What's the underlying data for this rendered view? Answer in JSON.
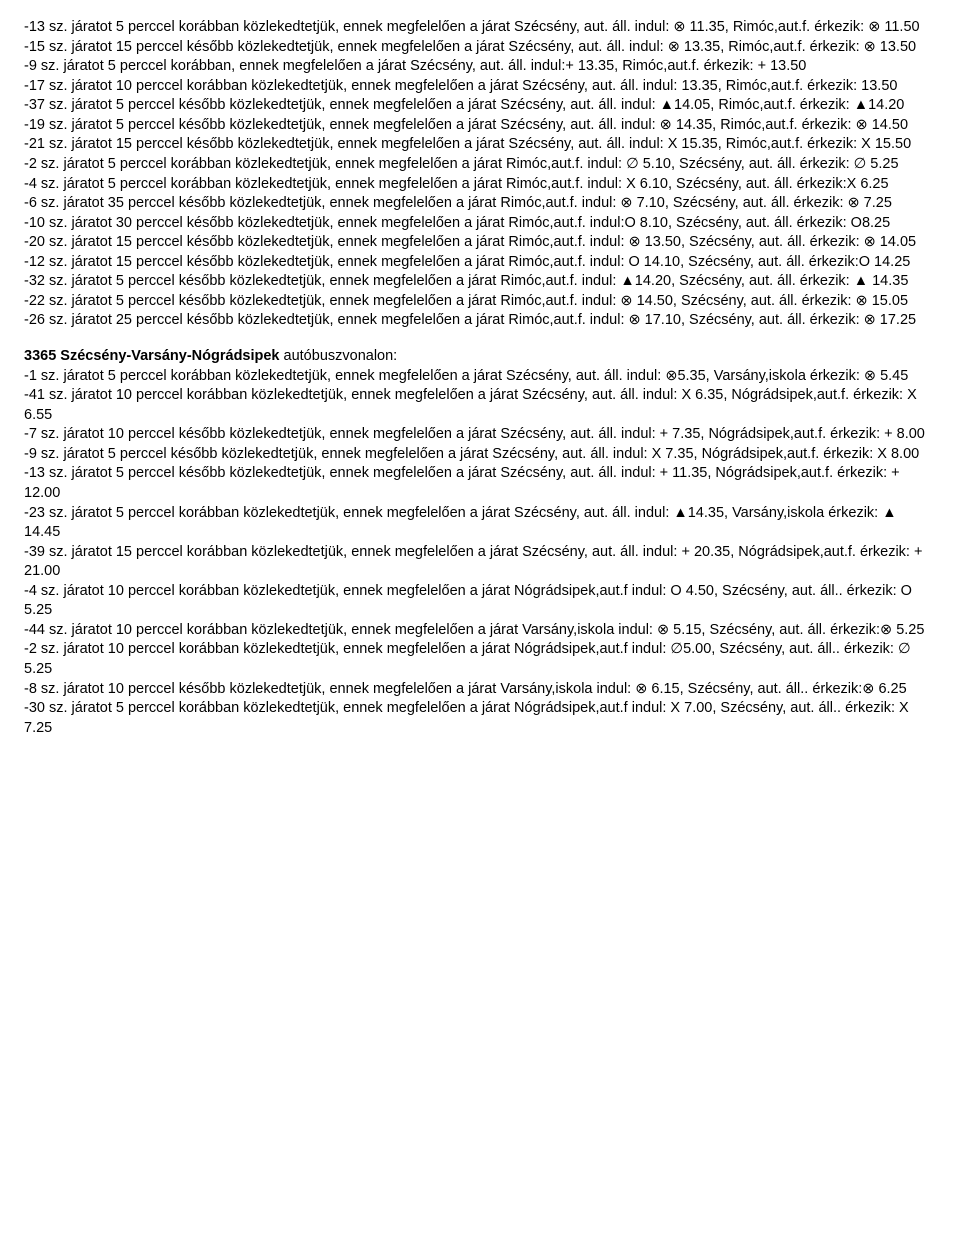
{
  "entries1": [
    "-13 sz. járatot 5 perccel korábban közlekedtetjük, ennek megfelelően a járat Szécsény, aut. áll. indul: ⊗ 11.35, Rimóc,aut.f. érkezik: ⊗ 11.50",
    "-15 sz. járatot 15 perccel később közlekedtetjük, ennek megfelelően a járat Szécsény, aut. áll. indul:   ⊗ 13.35, Rimóc,aut.f. érkezik: ⊗ 13.50",
    "-9 sz. járatot 5 perccel  korábban, ennek megfelelően a járat Szécsény, aut. áll. indul:+ 13.35, Rimóc,aut.f. érkezik:  + 13.50",
    "-17 sz. járatot 10 perccel korábban közlekedtetjük, ennek megfelelően a járat Szécsény, aut. áll. indul: 13.35, Rimóc,aut.f. érkezik: 13.50",
    "-37 sz. járatot 5 perccel később közlekedtetjük, ennek megfelelően a járat Szécsény, aut. áll. indul: ▲14.05, Rimóc,aut.f. érkezik: ▲14.20",
    "-19 sz. járatot 5 perccel később közlekedtetjük, ennek megfelelően a járat Szécsény, aut. áll. indul:   ⊗ 14.35, Rimóc,aut.f. érkezik: ⊗ 14.50",
    "-21 sz. járatot 15 perccel később közlekedtetjük, ennek megfelelően a járat Szécsény, aut. áll. indul:   X 15.35, Rimóc,aut.f. érkezik: X 15.50",
    "-2 sz. járatot 5 perccel korábban közlekedtetjük, ennek megfelelően a járat Rimóc,aut.f. indul: ∅ 5.10, Szécsény, aut. áll. érkezik: ∅ 5.25",
    "-4 sz. járatot 5 perccel korábban közlekedtetjük, ennek megfelelően a járat Rimóc,aut.f. indul: X  6.10, Szécsény, aut. áll. érkezik:X 6.25",
    "-6 sz. járatot 35 perccel később közlekedtetjük, ennek megfelelően a járat Rimóc,aut.f. indul: ⊗ 7.10, Szécsény, aut. áll. érkezik: ⊗ 7.25",
    "-10 sz. járatot 30 perccel később közlekedtetjük, ennek megfelelően a járat Rimóc,aut.f. indul:O  8.10, Szécsény, aut. áll. érkezik: O8.25",
    "-20 sz. járatot 15 perccel később közlekedtetjük, ennek megfelelően a járat Rimóc,aut.f. indul:         ⊗ 13.50, Szécsény, aut. áll. érkezik: ⊗ 14.05",
    "-12 sz. járatot 15 perccel később közlekedtetjük, ennek megfelelően a járat Rimóc,aut.f. indul:         O 14.10, Szécsény, aut. áll. érkezik:O 14.25",
    "-32 sz. járatot 5 perccel később közlekedtetjük, ennek megfelelően a járat Rimóc,aut.f. indul:  ▲14.20, Szécsény, aut. áll. érkezik: ▲ 14.35",
    "-22 sz. járatot 5 perccel később közlekedtetjük, ennek megfelelően a járat Rimóc,aut.f. indul: ⊗ 14.50, Szécsény, aut. áll. érkezik: ⊗ 15.05",
    "-26 sz. járatot 25 perccel később közlekedtetjük, ennek megfelelően a járat Rimóc,aut.f. indul:          ⊗ 17.10, Szécsény, aut. áll. érkezik: ⊗ 17.25"
  ],
  "section2_head_bold": "3365 Szécsény-Varsány-Nógrádsipek",
  "section2_head_plain": " autóbuszvonalon:",
  "entries2": [
    "-1 sz. járatot 5 perccel korábban közlekedtetjük, ennek megfelelően a járat Szécsény, aut. áll. indul:  ⊗5.35, Varsány,iskola érkezik: ⊗ 5.45",
    "-41 sz. járatot 10 perccel korábban közlekedtetjük, ennek megfelelően a járat Szécsény, aut. áll. indul: X 6.35, Nógrádsipek,aut.f. érkezik: X 6.55",
    "-7 sz. járatot 10 perccel később közlekedtetjük, ennek megfelelően a járat Szécsény, aut. áll. indul:    + 7.35, Nógrádsipek,aut.f. érkezik: + 8.00",
    "-9 sz. járatot 5 perccel később közlekedtetjük, ennek megfelelően a járat Szécsény, aut. áll. indul:     X 7.35, Nógrádsipek,aut.f. érkezik: X 8.00",
    "-13 sz. járatot 5 perccel később közlekedtetjük, ennek megfelelően a járat Szécsény, aut. áll. indul:    + 11.35, Nógrádsipek,aut.f. érkezik: + 12.00",
    "-23 sz. járatot 5 perccel korábban közlekedtetjük, ennek megfelelően a járat Szécsény, aut. áll. indul:  ▲14.35, Varsány,iskola érkezik: ▲ 14.45",
    "-39 sz. járatot 15 perccel korábban közlekedtetjük, ennek megfelelően a járat Szécsény, aut. áll. indul: + 20.35, Nógrádsipek,aut.f. érkezik: + 21.00",
    "-4 sz. járatot 10 perccel korábban közlekedtetjük, ennek megfelelően a járat Nógrádsipek,aut.f indul: O 4.50, Szécsény, aut. áll.. érkezik: O 5.25",
    "-44 sz. járatot 10 perccel korábban közlekedtetjük, ennek megfelelően a járat Varsány,iskola indul:     ⊗ 5.15, Szécsény, aut. áll. érkezik:⊗ 5.25",
    "-2 sz. járatot 10 perccel korábban közlekedtetjük, ennek megfelelően a járat Nógrádsipek,aut.f indul:  ∅5.00, Szécsény, aut. áll.. érkezik: ∅ 5.25",
    "-8 sz. járatot 10 perccel később közlekedtetjük, ennek megfelelően a járat Varsány,iskola indul:      ⊗ 6.15, Szécsény, aut. áll.. érkezik:⊗ 6.25",
    "-30 sz. járatot 5 perccel korábban közlekedtetjük, ennek megfelelően a járat Nógrádsipek,aut.f  indul:  X 7.00, Szécsény, aut. áll.. érkezik: X 7.25"
  ]
}
